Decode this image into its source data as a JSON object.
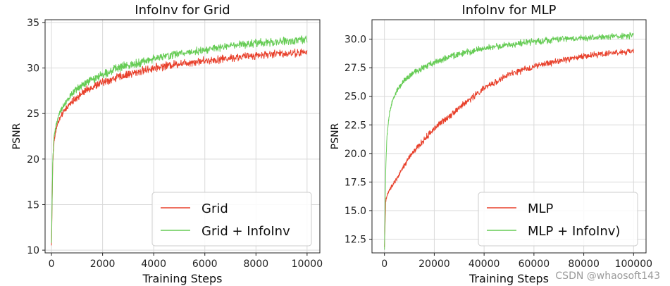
{
  "chart_data": [
    {
      "type": "line",
      "title": "InfoInv for Grid",
      "xlabel": "Training Steps",
      "ylabel": "PSNR",
      "xlim": [
        -250,
        10500
      ],
      "ylim": [
        9.7,
        35.3
      ],
      "xticks": [
        0,
        2000,
        4000,
        6000,
        8000,
        10000
      ],
      "xtick_labels": [
        "0",
        "2000",
        "4000",
        "6000",
        "8000",
        "10000"
      ],
      "yticks": [
        10,
        15,
        20,
        25,
        30,
        35
      ],
      "ytick_labels": [
        "10",
        "15",
        "20",
        "25",
        "30",
        "35"
      ],
      "grid": true,
      "legend_position": "lower-right",
      "series": [
        {
          "name": "Grid",
          "color": "#e8412c",
          "noise": 0.35,
          "x": [
            0,
            50,
            100,
            200,
            300,
            500,
            700,
            1000,
            1500,
            2000,
            2500,
            3000,
            4000,
            5000,
            6000,
            7000,
            8000,
            9000,
            10000
          ],
          "y": [
            10.5,
            19.5,
            22.0,
            23.5,
            24.3,
            25.3,
            26.0,
            26.8,
            27.8,
            28.4,
            28.9,
            29.3,
            30.0,
            30.5,
            30.8,
            31.1,
            31.4,
            31.6,
            31.7
          ]
        },
        {
          "name": "Grid + InfoInv",
          "color": "#66cc55",
          "noise": 0.35,
          "x": [
            0,
            50,
            100,
            200,
            300,
            500,
            700,
            1000,
            1500,
            2000,
            2500,
            3000,
            4000,
            5000,
            6000,
            7000,
            8000,
            9000,
            10000
          ],
          "y": [
            10.8,
            20.0,
            22.5,
            24.0,
            25.0,
            26.0,
            26.8,
            27.7,
            28.6,
            29.3,
            29.9,
            30.3,
            31.0,
            31.6,
            32.0,
            32.4,
            32.7,
            32.9,
            33.1
          ]
        }
      ]
    },
    {
      "type": "line",
      "title": "InfoInv for MLP",
      "xlabel": "Training Steps",
      "ylabel": "PSNR",
      "xlim": [
        -5000,
        105000
      ],
      "ylim": [
        11.3,
        31.7
      ],
      "xticks": [
        0,
        20000,
        40000,
        60000,
        80000,
        100000
      ],
      "xtick_labels": [
        "0",
        "20000",
        "40000",
        "60000",
        "80000",
        "100000"
      ],
      "yticks": [
        12.5,
        15.0,
        17.5,
        20.0,
        22.5,
        25.0,
        27.5,
        30.0
      ],
      "ytick_labels": [
        "12.5",
        "15.0",
        "17.5",
        "20.0",
        "22.5",
        "25.0",
        "27.5",
        "30.0"
      ],
      "grid": true,
      "legend_position": "lower-right",
      "series": [
        {
          "name": "MLP",
          "color": "#e8412c",
          "noise": 0.22,
          "x": [
            0,
            500,
            1000,
            2000,
            5000,
            10000,
            20000,
            30000,
            40000,
            50000,
            60000,
            70000,
            80000,
            90000,
            100000
          ],
          "y": [
            11.8,
            15.8,
            16.3,
            16.8,
            17.8,
            19.7,
            22.2,
            24.0,
            25.7,
            26.9,
            27.6,
            28.1,
            28.5,
            28.8,
            28.9
          ]
        },
        {
          "name": "MLP + InfoInv)",
          "color": "#66cc55",
          "noise": 0.22,
          "x": [
            0,
            500,
            1000,
            2000,
            3000,
            5000,
            8000,
            12000,
            20000,
            30000,
            40000,
            50000,
            60000,
            70000,
            80000,
            90000,
            100000
          ],
          "y": [
            11.5,
            18.5,
            21.5,
            23.5,
            24.5,
            25.5,
            26.4,
            27.1,
            28.0,
            28.7,
            29.2,
            29.5,
            29.8,
            30.0,
            30.1,
            30.2,
            30.3
          ]
        }
      ]
    }
  ],
  "watermark": "CSDN @whaosoft143"
}
